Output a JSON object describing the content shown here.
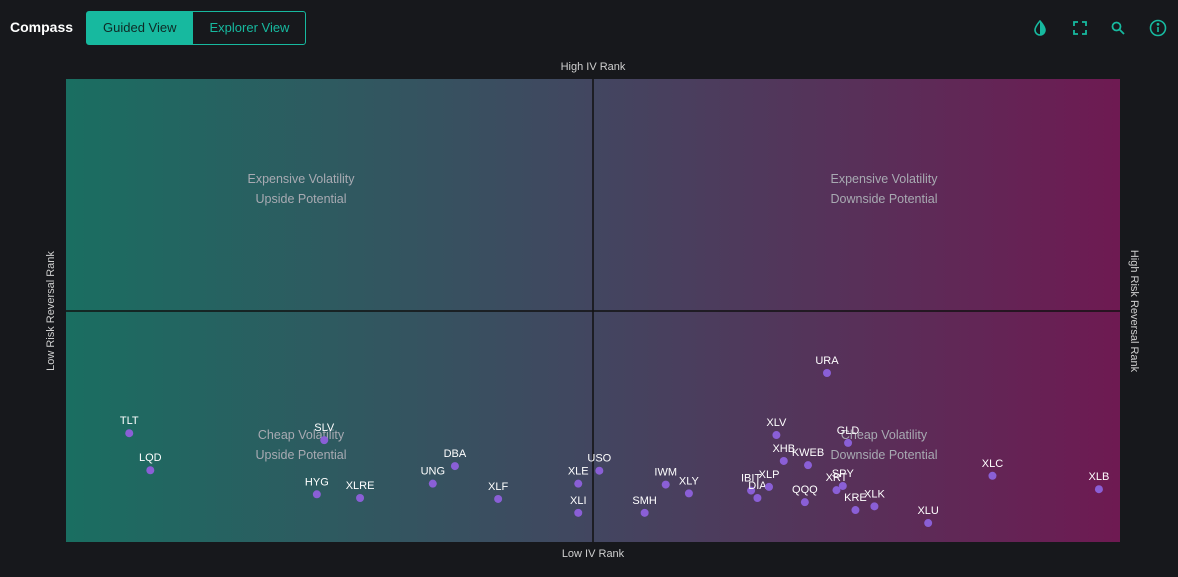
{
  "header": {
    "title": "Compass",
    "views": [
      {
        "label": "Guided View",
        "active": true
      },
      {
        "label": "Explorer View",
        "active": false
      }
    ],
    "icons": [
      "contrast-icon",
      "fullscreen-icon",
      "search-icon",
      "info-icon"
    ],
    "accent_color": "#17b99f"
  },
  "chart_data": {
    "type": "scatter",
    "axis_labels": {
      "top": "High IV Rank",
      "bottom": "Low IV Rank",
      "left": "Low Risk Reversal Rank",
      "right": "High Risk Reversal Rank"
    },
    "xlim": [
      0,
      100
    ],
    "ylim": [
      0,
      100
    ],
    "quadrants": [
      {
        "line1": "Expensive Volatility",
        "line2": "Upside Potential"
      },
      {
        "line1": "Expensive Volatility",
        "line2": "Downside Potential"
      },
      {
        "line1": "Cheap Volatility",
        "line2": "Upside Potential"
      },
      {
        "line1": "Cheap Volatility",
        "line2": "Downside Potential"
      }
    ],
    "colors": {
      "left": "#1a6e61",
      "middle": "#424660",
      "right": "#6e1a52",
      "point": "#8a5fd6"
    },
    "points": [
      {
        "label": "TLT",
        "x": 6.0,
        "y": 23.5
      },
      {
        "label": "LQD",
        "x": 8.0,
        "y": 15.5
      },
      {
        "label": "SLV",
        "x": 24.5,
        "y": 22.0
      },
      {
        "label": "HYG",
        "x": 23.8,
        "y": 10.3
      },
      {
        "label": "XLRE",
        "x": 27.9,
        "y": 9.5
      },
      {
        "label": "UNG",
        "x": 34.8,
        "y": 12.6
      },
      {
        "label": "DBA",
        "x": 36.9,
        "y": 16.4
      },
      {
        "label": "XLF",
        "x": 41.0,
        "y": 9.3
      },
      {
        "label": "XLE",
        "x": 48.6,
        "y": 12.6
      },
      {
        "label": "XLI",
        "x": 48.6,
        "y": 6.3
      },
      {
        "label": "USO",
        "x": 50.6,
        "y": 15.4
      },
      {
        "label": "SMH",
        "x": 54.9,
        "y": 6.3
      },
      {
        "label": "IWM",
        "x": 56.9,
        "y": 12.4
      },
      {
        "label": "XLY",
        "x": 59.1,
        "y": 10.5
      },
      {
        "label": "IBIT",
        "x": 65.0,
        "y": 11.1
      },
      {
        "label": "DIA",
        "x": 65.6,
        "y": 9.5
      },
      {
        "label": "XLP",
        "x": 66.7,
        "y": 11.9
      },
      {
        "label": "XLV",
        "x": 67.4,
        "y": 23.1
      },
      {
        "label": "XHB",
        "x": 68.1,
        "y": 17.5
      },
      {
        "label": "KWEB",
        "x": 70.4,
        "y": 16.6
      },
      {
        "label": "QQQ",
        "x": 70.1,
        "y": 8.6
      },
      {
        "label": "URA",
        "x": 72.2,
        "y": 36.5
      },
      {
        "label": "GLD",
        "x": 74.2,
        "y": 21.4
      },
      {
        "label": "XRT",
        "x": 73.1,
        "y": 11.2
      },
      {
        "label": "SPY",
        "x": 73.7,
        "y": 12.1
      },
      {
        "label": "KRE",
        "x": 74.9,
        "y": 6.9
      },
      {
        "label": "XLK",
        "x": 76.7,
        "y": 7.7
      },
      {
        "label": "XLU",
        "x": 81.8,
        "y": 4.1
      },
      {
        "label": "XLC",
        "x": 87.9,
        "y": 14.3
      },
      {
        "label": "XLB",
        "x": 98.0,
        "y": 11.4
      }
    ]
  }
}
